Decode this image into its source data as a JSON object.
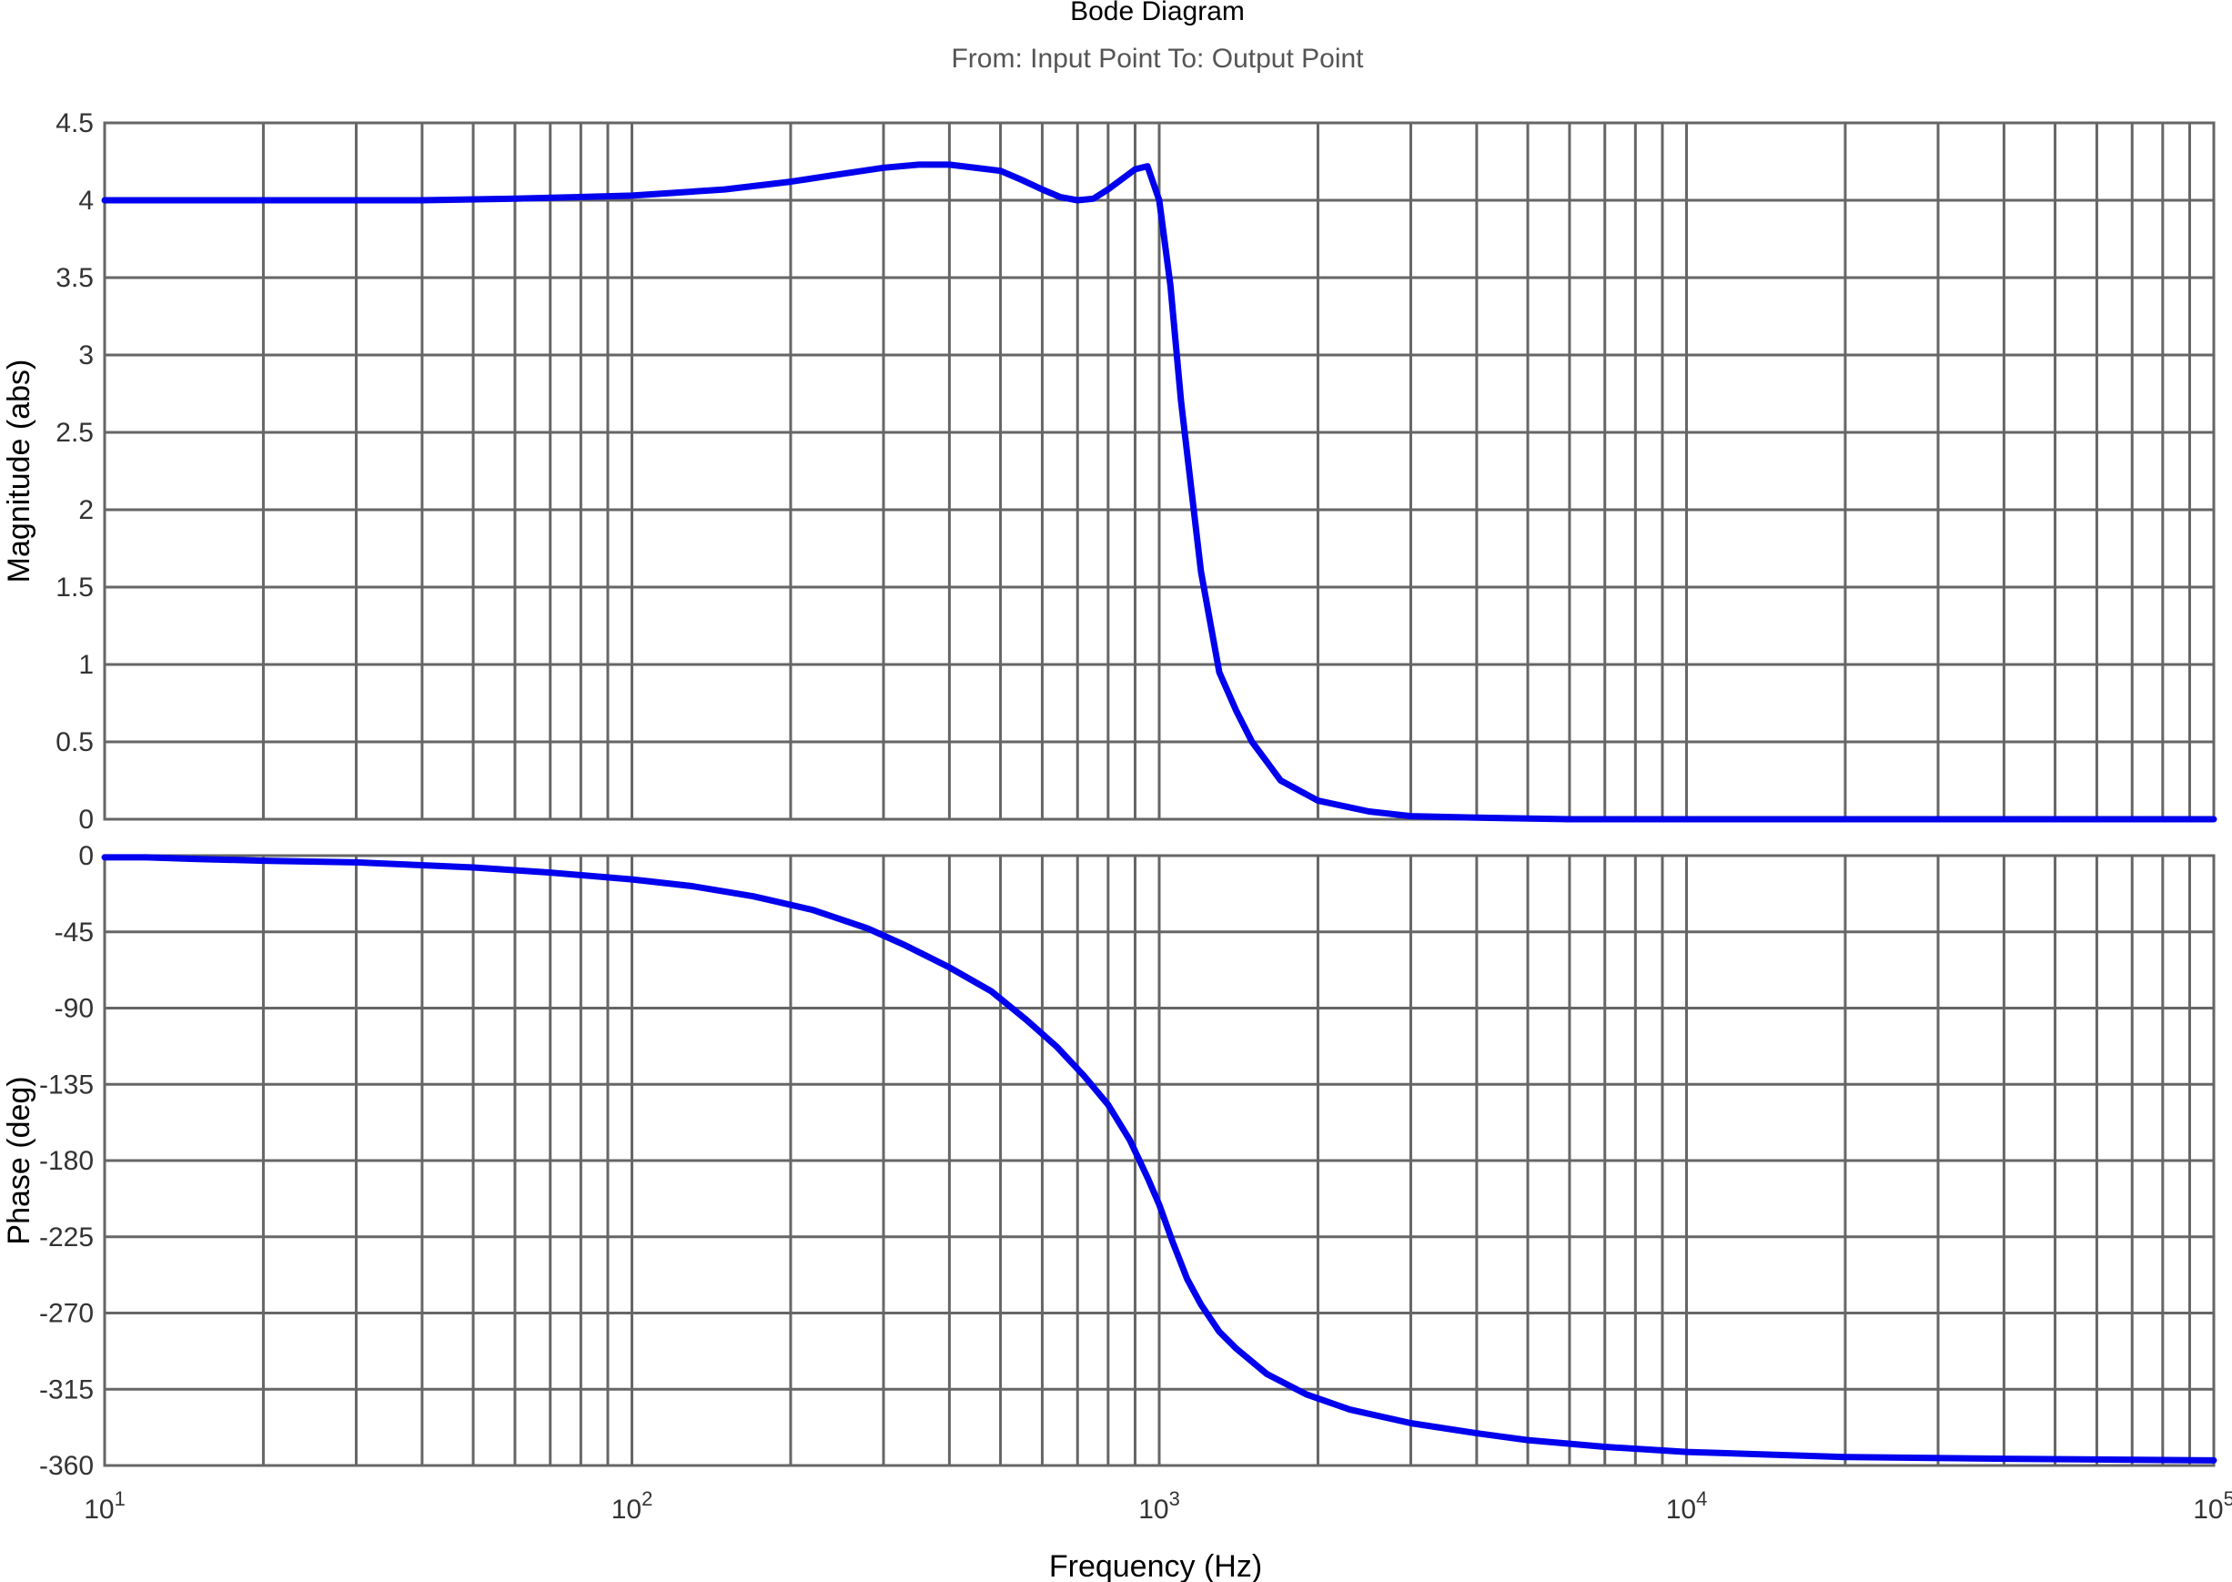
{
  "chart_data": {
    "type": "line",
    "title": "Bode Diagram",
    "subtitle": "From: Input Point  To: Output Point",
    "xlabel": "Frequency  (Hz)",
    "xscale": "log",
    "xlim": [
      10,
      100000
    ],
    "x_ticks": [
      {
        "base": "10",
        "exp": "1"
      },
      {
        "base": "10",
        "exp": "2"
      },
      {
        "base": "10",
        "exp": "3"
      },
      {
        "base": "10",
        "exp": "4"
      },
      {
        "base": "10",
        "exp": "5"
      }
    ],
    "grid": true,
    "series_color": "#0000ee",
    "panels": [
      {
        "ylabel": "Magnitude (abs)",
        "ylim": [
          0,
          4.5
        ],
        "yticks": [
          "4.5",
          "4",
          "3.5",
          "3",
          "2.5",
          "2",
          "1.5",
          "1",
          "0.5",
          "0"
        ],
        "ytick_values": [
          4.5,
          4,
          3.5,
          3,
          2.5,
          2,
          1.5,
          1,
          0.5,
          0
        ],
        "x": [
          10,
          20,
          40,
          60,
          100,
          150,
          200,
          250,
          300,
          350,
          400,
          500,
          550,
          600,
          650,
          700,
          750,
          800,
          900,
          950,
          1000,
          1050,
          1100,
          1200,
          1300,
          1400,
          1500,
          1700,
          2000,
          2500,
          3000,
          4000,
          6000,
          10000,
          30000,
          100000
        ],
        "y": [
          4.0,
          4.0,
          4.0,
          4.01,
          4.03,
          4.07,
          4.12,
          4.17,
          4.21,
          4.23,
          4.23,
          4.19,
          4.13,
          4.07,
          4.02,
          4.0,
          4.01,
          4.07,
          4.2,
          4.22,
          4.0,
          3.45,
          2.7,
          1.6,
          0.95,
          0.7,
          0.5,
          0.25,
          0.12,
          0.05,
          0.02,
          0.01,
          0.0,
          0.0,
          0.0,
          0.0
        ]
      },
      {
        "ylabel": "Phase (deg)",
        "ylim": [
          -360,
          0
        ],
        "yticks": [
          "0",
          "-45",
          "-90",
          "-135",
          "-180",
          "-225",
          "-270",
          "-315",
          "-360"
        ],
        "ytick_values": [
          0,
          -45,
          -90,
          -135,
          -180,
          -225,
          -270,
          -315,
          -360
        ],
        "x": [
          10,
          12,
          15,
          20,
          30,
          50,
          70,
          100,
          130,
          170,
          220,
          280,
          330,
          400,
          480,
          560,
          640,
          720,
          800,
          880,
          950,
          1000,
          1060,
          1130,
          1200,
          1300,
          1400,
          1600,
          1900,
          2300,
          3000,
          4000,
          5000,
          7000,
          10000,
          20000,
          40000,
          100000
        ],
        "y": [
          -1,
          -1,
          -2,
          -3,
          -4,
          -7,
          -10,
          -14,
          -18,
          -24,
          -32,
          -43,
          -53,
          -66,
          -80,
          -97,
          -113,
          -130,
          -147,
          -168,
          -190,
          -206,
          -228,
          -250,
          -265,
          -281,
          -291,
          -306,
          -318,
          -327,
          -335,
          -341,
          -345,
          -349,
          -352,
          -355,
          -356,
          -357
        ]
      }
    ]
  }
}
